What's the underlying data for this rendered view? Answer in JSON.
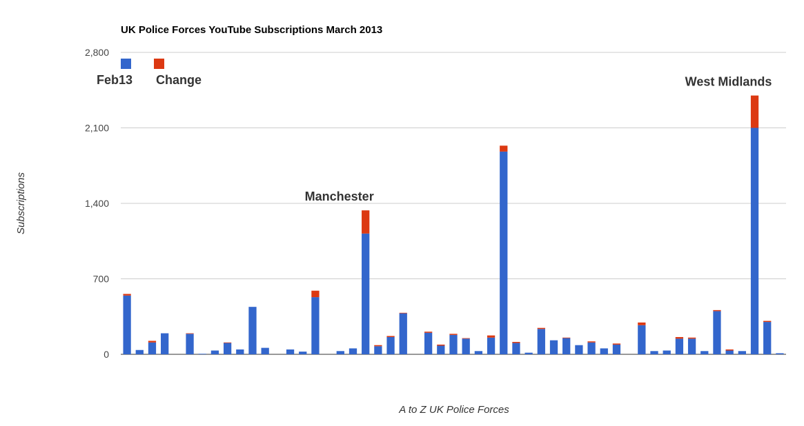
{
  "chart_data": {
    "type": "bar",
    "stacked": true,
    "title": "UK Police Forces YouTube Subscriptions March 2013",
    "xlabel": "A to Z UK Police Forces",
    "ylabel": "Subscriptions",
    "ylim": [
      0,
      2800
    ],
    "yticks": [
      "0",
      "700",
      "1,400",
      "2,100",
      "2,800"
    ],
    "ytick_values": [
      0,
      700,
      1400,
      2100,
      2800
    ],
    "grid": true,
    "legend_position": "top-left",
    "series": [
      {
        "name": "Feb13",
        "color": "#3366cc",
        "values": [
          545,
          40,
          110,
          195,
          0,
          190,
          5,
          35,
          105,
          45,
          440,
          60,
          0,
          45,
          25,
          530,
          0,
          30,
          55,
          1120,
          75,
          160,
          380,
          0,
          200,
          80,
          180,
          145,
          30,
          155,
          1880,
          105,
          15,
          235,
          130,
          150,
          85,
          110,
          55,
          90,
          0,
          270,
          30,
          35,
          145,
          145,
          30,
          400,
          35,
          30,
          2100,
          300,
          10
        ]
      },
      {
        "name": "Change",
        "color": "#dc3912",
        "values": [
          15,
          0,
          15,
          0,
          0,
          5,
          0,
          0,
          5,
          0,
          0,
          0,
          0,
          0,
          0,
          60,
          0,
          0,
          0,
          215,
          10,
          10,
          5,
          0,
          10,
          10,
          10,
          5,
          0,
          20,
          55,
          10,
          0,
          10,
          0,
          5,
          0,
          10,
          0,
          10,
          0,
          25,
          0,
          0,
          15,
          10,
          0,
          10,
          10,
          0,
          300,
          10,
          0
        ]
      }
    ],
    "annotations": [
      {
        "text": "Manchester",
        "bar_index": 19
      },
      {
        "text": "West Midlands",
        "bar_index": 50
      }
    ]
  }
}
